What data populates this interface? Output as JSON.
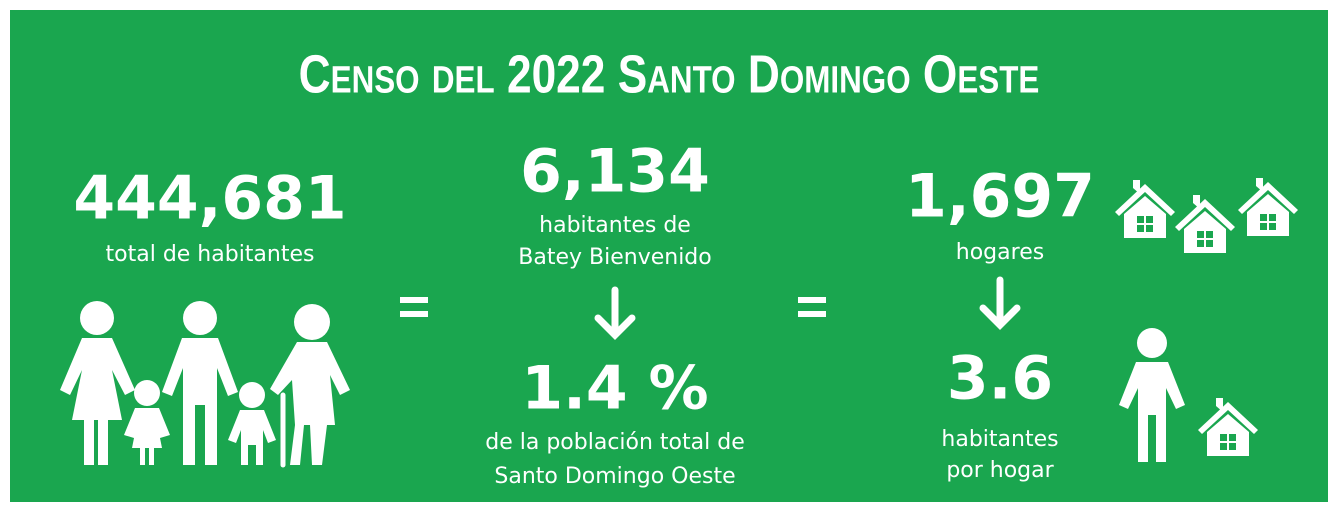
{
  "title": "Censo del 2022 Santo Domingo Oeste",
  "total": {
    "number": "444,681",
    "label": "total de habitantes"
  },
  "batey": {
    "number": "6,134",
    "label_lines": [
      "habitantes de",
      "Batey Bienvenido"
    ]
  },
  "share": {
    "number": "1.4 %",
    "label_lines": [
      "de la población total de",
      "Santo Domingo Oeste"
    ]
  },
  "households": {
    "number": "1,697",
    "label": "hogares"
  },
  "per_household": {
    "number": "3.6",
    "label_lines": [
      "habitantes",
      "por hogar"
    ]
  }
}
